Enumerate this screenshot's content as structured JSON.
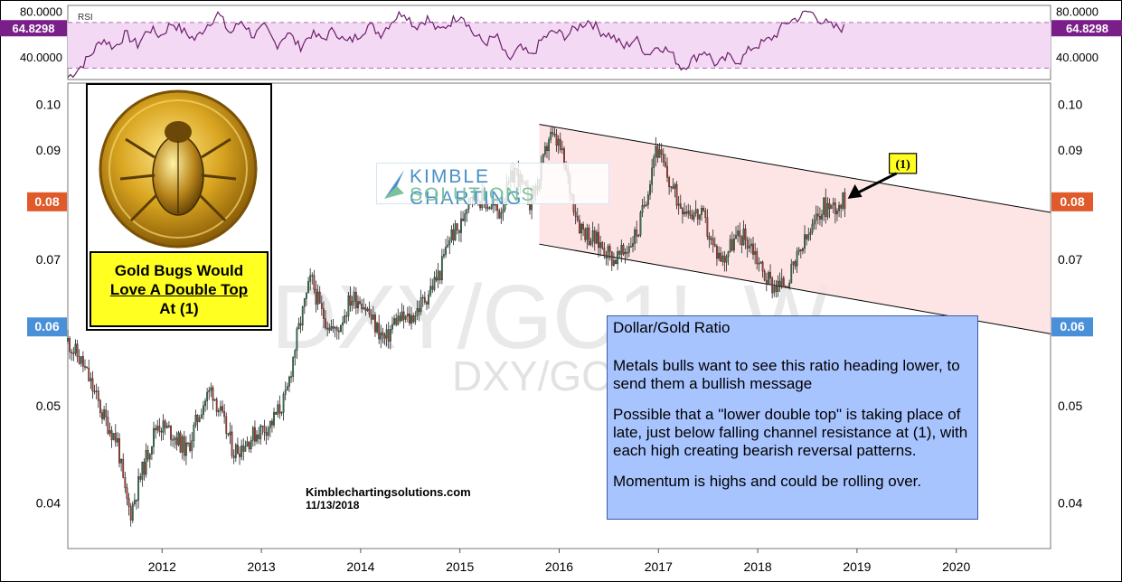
{
  "chart_data": {
    "type": "candlestick",
    "symbol": "DXY/GC1!",
    "watermark_primary": "DXY/GC1!, W",
    "watermark_secondary": "DXY/GC1!",
    "y_scale": "log",
    "ylim": [
      0.036,
      0.105
    ],
    "price_ticks": [
      {
        "value": 0.1,
        "label": "0.10"
      },
      {
        "value": 0.09,
        "label": "0.09"
      },
      {
        "value": 0.07,
        "label": "0.07"
      },
      {
        "value": 0.06,
        "label": "0.06"
      },
      {
        "value": 0.05,
        "label": "0.05"
      },
      {
        "value": 0.04,
        "label": "0.04"
      }
    ],
    "price_badges": [
      {
        "value": 0.08,
        "label": "0.08",
        "color": "#e05a2b"
      },
      {
        "value": 0.06,
        "label": "0.06",
        "color": "#4a90d9"
      }
    ],
    "x_range": [
      2011.05,
      2020.95
    ],
    "x_ticks": [
      {
        "value": 2012,
        "label": "2012"
      },
      {
        "value": 2013,
        "label": "2013"
      },
      {
        "value": 2014,
        "label": "2014"
      },
      {
        "value": 2015,
        "label": "2015"
      },
      {
        "value": 2016,
        "label": "2016"
      },
      {
        "value": 2017,
        "label": "2017"
      },
      {
        "value": 2018,
        "label": "2018"
      },
      {
        "value": 2019,
        "label": "2019"
      },
      {
        "value": 2020,
        "label": "2020"
      }
    ],
    "price_path": [
      [
        2011.05,
        0.058
      ],
      [
        2011.2,
        0.055
      ],
      [
        2011.4,
        0.049
      ],
      [
        2011.55,
        0.046
      ],
      [
        2011.62,
        0.041
      ],
      [
        2011.68,
        0.039
      ],
      [
        2011.8,
        0.043
      ],
      [
        2011.95,
        0.048
      ],
      [
        2012.1,
        0.047
      ],
      [
        2012.25,
        0.045
      ],
      [
        2012.4,
        0.05
      ],
      [
        2012.5,
        0.052
      ],
      [
        2012.62,
        0.048
      ],
      [
        2012.72,
        0.045
      ],
      [
        2012.85,
        0.046
      ],
      [
        2012.95,
        0.047
      ],
      [
        2013.1,
        0.048
      ],
      [
        2013.25,
        0.051
      ],
      [
        2013.35,
        0.058
      ],
      [
        2013.5,
        0.067
      ],
      [
        2013.6,
        0.062
      ],
      [
        2013.75,
        0.059
      ],
      [
        2013.9,
        0.064
      ],
      [
        2014.0,
        0.064
      ],
      [
        2014.15,
        0.06
      ],
      [
        2014.25,
        0.058
      ],
      [
        2014.35,
        0.061
      ],
      [
        2014.5,
        0.061
      ],
      [
        2014.65,
        0.064
      ],
      [
        2014.8,
        0.068
      ],
      [
        2014.9,
        0.074
      ],
      [
        2015.0,
        0.075
      ],
      [
        2015.1,
        0.082
      ],
      [
        2015.25,
        0.08
      ],
      [
        2015.4,
        0.078
      ],
      [
        2015.55,
        0.086
      ],
      [
        2015.7,
        0.08
      ],
      [
        2015.8,
        0.084
      ],
      [
        2015.9,
        0.093
      ],
      [
        2016.0,
        0.091
      ],
      [
        2016.1,
        0.083
      ],
      [
        2016.2,
        0.076
      ],
      [
        2016.3,
        0.074
      ],
      [
        2016.45,
        0.072
      ],
      [
        2016.55,
        0.07
      ],
      [
        2016.65,
        0.071
      ],
      [
        2016.8,
        0.075
      ],
      [
        2016.9,
        0.083
      ],
      [
        2016.97,
        0.091
      ],
      [
        2017.1,
        0.084
      ],
      [
        2017.2,
        0.08
      ],
      [
        2017.35,
        0.078
      ],
      [
        2017.45,
        0.077
      ],
      [
        2017.55,
        0.072
      ],
      [
        2017.65,
        0.07
      ],
      [
        2017.75,
        0.073
      ],
      [
        2017.85,
        0.074
      ],
      [
        2017.95,
        0.072
      ],
      [
        2018.05,
        0.068
      ],
      [
        2018.15,
        0.066
      ],
      [
        2018.25,
        0.066
      ],
      [
        2018.35,
        0.068
      ],
      [
        2018.45,
        0.072
      ],
      [
        2018.55,
        0.075
      ],
      [
        2018.65,
        0.079
      ],
      [
        2018.75,
        0.079
      ],
      [
        2018.87,
        0.08
      ]
    ],
    "channel": {
      "upper": [
        [
          2015.8,
          0.0955
        ],
        [
          2020.95,
          0.078
        ]
      ],
      "lower": [
        [
          2015.8,
          0.0725
        ],
        [
          2020.95,
          0.059
        ]
      ]
    },
    "rsi": {
      "label": "RSI",
      "value_label": "64.8298",
      "ticks": [
        {
          "value": 80,
          "label": "80.0000"
        },
        {
          "value": 40,
          "label": "40.0000"
        }
      ],
      "band": [
        30,
        70
      ],
      "ylim": [
        20,
        85
      ],
      "x_range": [
        2011.05,
        2018.87
      ],
      "path": [
        22,
        30,
        42,
        56,
        48,
        60,
        50,
        65,
        58,
        70,
        62,
        55,
        68,
        78,
        60,
        72,
        58,
        66,
        50,
        62,
        48,
        60,
        55,
        64,
        52,
        58,
        68,
        60,
        72,
        80,
        66,
        74,
        62,
        70,
        78,
        60,
        52,
        58,
        36,
        48,
        40,
        56,
        62,
        58,
        66,
        72,
        62,
        58,
        48,
        56,
        42,
        50,
        44,
        30,
        38,
        46,
        32,
        40,
        36,
        48,
        52,
        58,
        70,
        74,
        80,
        72,
        66,
        65
      ]
    },
    "annotations": {
      "marker_label": "(1)",
      "marker_point": [
        2018.87,
        0.0805
      ]
    }
  },
  "coin_panel": {
    "line1": "Gold Bugs Would",
    "line2": "Love A Double Top",
    "line3": "At (1)"
  },
  "note_box": {
    "title": "Dollar/Gold Ratio",
    "para1": "Metals bulls want to see this ratio heading lower, to send them a bullish message",
    "para2": "Possible that a \"lower double top\" is taking place of late, just below falling channel resistance at (1), with each high creating bearish reversal patterns.",
    "para3": "Momentum is highs and could be rolling over."
  },
  "logo": {
    "line1": "KIMBLE CHARTING",
    "line2": "SOLUTIONS"
  },
  "footer": {
    "site": "Kimblechartingsolutions.com",
    "date": "11/13/2018"
  },
  "colors": {
    "up_candle": "#2e7d4f",
    "down_candle": "#c0392b",
    "channel_fill": "#fde0e0",
    "rsi_fill": "#f4d9f4",
    "rsi_line": "#6b1f6b",
    "badge_rsi": "#7a1f8a"
  }
}
